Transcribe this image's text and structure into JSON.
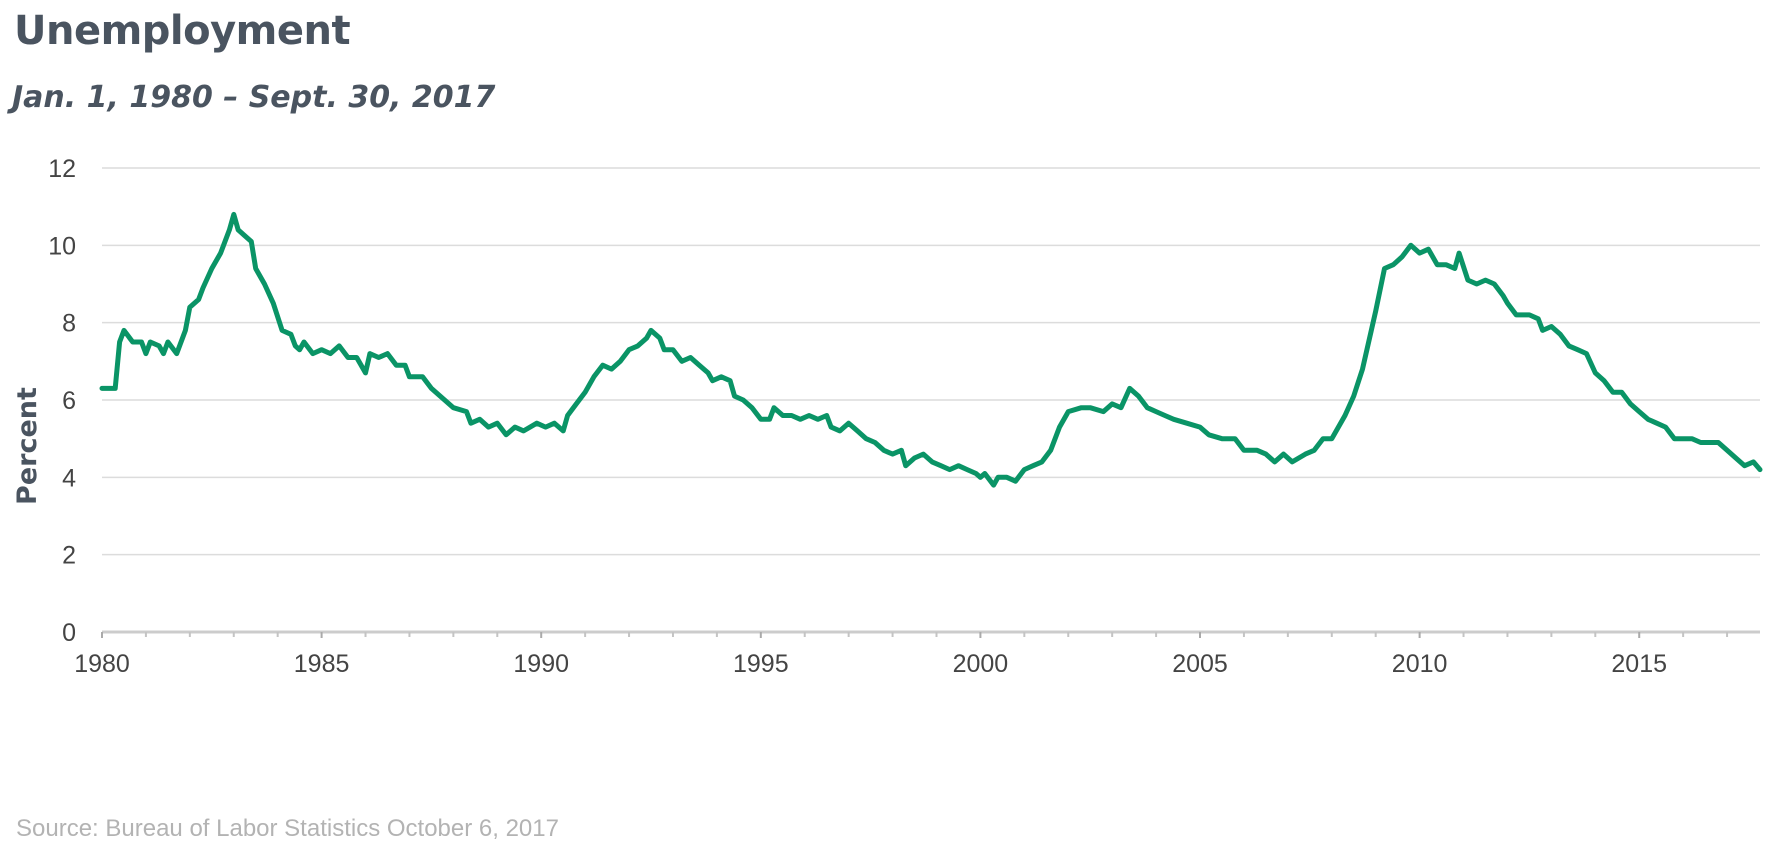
{
  "title": "Unemployment",
  "subtitle": "Jan. 1, 1980 – Sept. 30, 2017",
  "source": "Source: Bureau of Labor Statistics October 6, 2017",
  "colors": {
    "line": "#0a9466",
    "grid": "#dcdcdc",
    "axis": "#cccccc",
    "text": "#4a5460"
  },
  "chart_data": {
    "type": "line",
    "title": "Unemployment",
    "subtitle": "Jan. 1, 1980 – Sept. 30, 2017",
    "xlabel": "",
    "ylabel": "Percent",
    "xlim": [
      1980,
      2017.75
    ],
    "ylim": [
      0,
      12
    ],
    "x_ticks": [
      1980,
      1985,
      1990,
      1995,
      2000,
      2005,
      2010,
      2015
    ],
    "y_ticks": [
      0,
      2,
      4,
      6,
      8,
      10,
      12
    ],
    "grid": true,
    "legend": "none",
    "series": [
      {
        "values": [
          [
            1980.0,
            6.3
          ],
          [
            1980.3,
            6.3
          ],
          [
            1980.4,
            7.5
          ],
          [
            1980.5,
            7.8
          ],
          [
            1980.7,
            7.5
          ],
          [
            1980.9,
            7.5
          ],
          [
            1981.0,
            7.2
          ],
          [
            1981.1,
            7.5
          ],
          [
            1981.3,
            7.4
          ],
          [
            1981.4,
            7.2
          ],
          [
            1981.5,
            7.5
          ],
          [
            1981.7,
            7.2
          ],
          [
            1981.9,
            7.8
          ],
          [
            1982.0,
            8.4
          ],
          [
            1982.2,
            8.6
          ],
          [
            1982.3,
            8.9
          ],
          [
            1982.5,
            9.4
          ],
          [
            1982.7,
            9.8
          ],
          [
            1982.9,
            10.4
          ],
          [
            1983.0,
            10.8
          ],
          [
            1983.1,
            10.4
          ],
          [
            1983.3,
            10.2
          ],
          [
            1983.4,
            10.1
          ],
          [
            1983.5,
            9.4
          ],
          [
            1983.7,
            9.0
          ],
          [
            1983.9,
            8.5
          ],
          [
            1984.1,
            7.8
          ],
          [
            1984.3,
            7.7
          ],
          [
            1984.4,
            7.4
          ],
          [
            1984.5,
            7.3
          ],
          [
            1984.6,
            7.5
          ],
          [
            1984.8,
            7.2
          ],
          [
            1985.0,
            7.3
          ],
          [
            1985.2,
            7.2
          ],
          [
            1985.4,
            7.4
          ],
          [
            1985.6,
            7.1
          ],
          [
            1985.8,
            7.1
          ],
          [
            1986.0,
            6.7
          ],
          [
            1986.1,
            7.2
          ],
          [
            1986.3,
            7.1
          ],
          [
            1986.5,
            7.2
          ],
          [
            1986.7,
            6.9
          ],
          [
            1986.9,
            6.9
          ],
          [
            1987.0,
            6.6
          ],
          [
            1987.3,
            6.6
          ],
          [
            1987.5,
            6.3
          ],
          [
            1987.8,
            6.0
          ],
          [
            1988.0,
            5.8
          ],
          [
            1988.3,
            5.7
          ],
          [
            1988.4,
            5.4
          ],
          [
            1988.6,
            5.5
          ],
          [
            1988.8,
            5.3
          ],
          [
            1989.0,
            5.4
          ],
          [
            1989.2,
            5.1
          ],
          [
            1989.4,
            5.3
          ],
          [
            1989.6,
            5.2
          ],
          [
            1989.9,
            5.4
          ],
          [
            1990.1,
            5.3
          ],
          [
            1990.3,
            5.4
          ],
          [
            1990.5,
            5.2
          ],
          [
            1990.6,
            5.6
          ],
          [
            1990.8,
            5.9
          ],
          [
            1991.0,
            6.2
          ],
          [
            1991.2,
            6.6
          ],
          [
            1991.4,
            6.9
          ],
          [
            1991.6,
            6.8
          ],
          [
            1991.8,
            7.0
          ],
          [
            1992.0,
            7.3
          ],
          [
            1992.2,
            7.4
          ],
          [
            1992.4,
            7.6
          ],
          [
            1992.5,
            7.8
          ],
          [
            1992.7,
            7.6
          ],
          [
            1992.8,
            7.3
          ],
          [
            1993.0,
            7.3
          ],
          [
            1993.2,
            7.0
          ],
          [
            1993.4,
            7.1
          ],
          [
            1993.6,
            6.9
          ],
          [
            1993.8,
            6.7
          ],
          [
            1993.9,
            6.5
          ],
          [
            1994.1,
            6.6
          ],
          [
            1994.3,
            6.5
          ],
          [
            1994.4,
            6.1
          ],
          [
            1994.6,
            6.0
          ],
          [
            1994.8,
            5.8
          ],
          [
            1995.0,
            5.5
          ],
          [
            1995.2,
            5.5
          ],
          [
            1995.3,
            5.8
          ],
          [
            1995.5,
            5.6
          ],
          [
            1995.7,
            5.6
          ],
          [
            1995.9,
            5.5
          ],
          [
            1996.1,
            5.6
          ],
          [
            1996.3,
            5.5
          ],
          [
            1996.5,
            5.6
          ],
          [
            1996.6,
            5.3
          ],
          [
            1996.8,
            5.2
          ],
          [
            1997.0,
            5.4
          ],
          [
            1997.2,
            5.2
          ],
          [
            1997.4,
            5.0
          ],
          [
            1997.6,
            4.9
          ],
          [
            1997.8,
            4.7
          ],
          [
            1998.0,
            4.6
          ],
          [
            1998.2,
            4.7
          ],
          [
            1998.3,
            4.3
          ],
          [
            1998.5,
            4.5
          ],
          [
            1998.7,
            4.6
          ],
          [
            1998.9,
            4.4
          ],
          [
            1999.1,
            4.3
          ],
          [
            1999.3,
            4.2
          ],
          [
            1999.5,
            4.3
          ],
          [
            1999.7,
            4.2
          ],
          [
            1999.9,
            4.1
          ],
          [
            2000.0,
            4.0
          ],
          [
            2000.1,
            4.1
          ],
          [
            2000.3,
            3.8
          ],
          [
            2000.4,
            4.0
          ],
          [
            2000.6,
            4.0
          ],
          [
            2000.8,
            3.9
          ],
          [
            2001.0,
            4.2
          ],
          [
            2001.2,
            4.3
          ],
          [
            2001.4,
            4.4
          ],
          [
            2001.6,
            4.7
          ],
          [
            2001.8,
            5.3
          ],
          [
            2002.0,
            5.7
          ],
          [
            2002.3,
            5.8
          ],
          [
            2002.5,
            5.8
          ],
          [
            2002.8,
            5.7
          ],
          [
            2003.0,
            5.9
          ],
          [
            2003.2,
            5.8
          ],
          [
            2003.4,
            6.3
          ],
          [
            2003.6,
            6.1
          ],
          [
            2003.8,
            5.8
          ],
          [
            2004.0,
            5.7
          ],
          [
            2004.2,
            5.6
          ],
          [
            2004.4,
            5.5
          ],
          [
            2004.7,
            5.4
          ],
          [
            2005.0,
            5.3
          ],
          [
            2005.2,
            5.1
          ],
          [
            2005.5,
            5.0
          ],
          [
            2005.8,
            5.0
          ],
          [
            2006.0,
            4.7
          ],
          [
            2006.3,
            4.7
          ],
          [
            2006.5,
            4.6
          ],
          [
            2006.7,
            4.4
          ],
          [
            2006.9,
            4.6
          ],
          [
            2007.1,
            4.4
          ],
          [
            2007.4,
            4.6
          ],
          [
            2007.6,
            4.7
          ],
          [
            2007.8,
            5.0
          ],
          [
            2008.0,
            5.0
          ],
          [
            2008.3,
            5.6
          ],
          [
            2008.5,
            6.1
          ],
          [
            2008.7,
            6.8
          ],
          [
            2008.9,
            7.8
          ],
          [
            2009.0,
            8.3
          ],
          [
            2009.2,
            9.4
          ],
          [
            2009.4,
            9.5
          ],
          [
            2009.6,
            9.7
          ],
          [
            2009.8,
            10.0
          ],
          [
            2010.0,
            9.8
          ],
          [
            2010.2,
            9.9
          ],
          [
            2010.4,
            9.5
          ],
          [
            2010.6,
            9.5
          ],
          [
            2010.8,
            9.4
          ],
          [
            2010.9,
            9.8
          ],
          [
            2011.1,
            9.1
          ],
          [
            2011.3,
            9.0
          ],
          [
            2011.5,
            9.1
          ],
          [
            2011.7,
            9.0
          ],
          [
            2011.9,
            8.7
          ],
          [
            2012.0,
            8.5
          ],
          [
            2012.2,
            8.2
          ],
          [
            2012.5,
            8.2
          ],
          [
            2012.7,
            8.1
          ],
          [
            2012.8,
            7.8
          ],
          [
            2013.0,
            7.9
          ],
          [
            2013.2,
            7.7
          ],
          [
            2013.4,
            7.4
          ],
          [
            2013.6,
            7.3
          ],
          [
            2013.8,
            7.2
          ],
          [
            2014.0,
            6.7
          ],
          [
            2014.2,
            6.5
          ],
          [
            2014.4,
            6.2
          ],
          [
            2014.6,
            6.2
          ],
          [
            2014.8,
            5.9
          ],
          [
            2015.0,
            5.7
          ],
          [
            2015.2,
            5.5
          ],
          [
            2015.4,
            5.4
          ],
          [
            2015.6,
            5.3
          ],
          [
            2015.8,
            5.0
          ],
          [
            2016.0,
            5.0
          ],
          [
            2016.2,
            5.0
          ],
          [
            2016.4,
            4.9
          ],
          [
            2016.6,
            4.9
          ],
          [
            2016.8,
            4.9
          ],
          [
            2017.0,
            4.7
          ],
          [
            2017.2,
            4.5
          ],
          [
            2017.4,
            4.3
          ],
          [
            2017.6,
            4.4
          ],
          [
            2017.75,
            4.2
          ]
        ]
      }
    ]
  }
}
